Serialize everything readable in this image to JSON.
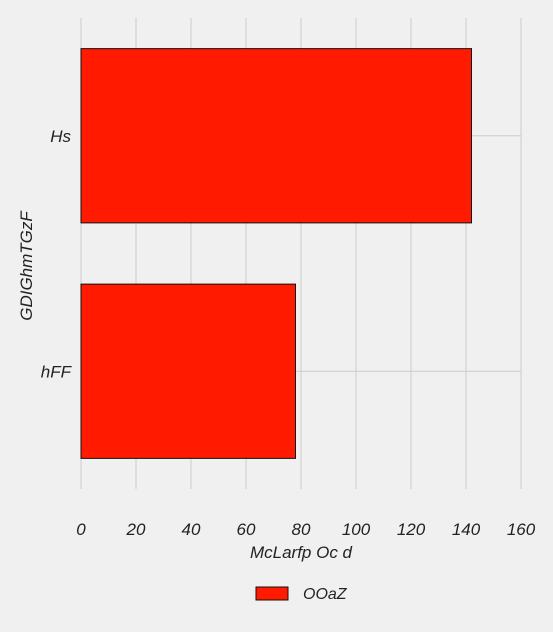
{
  "chart_data": {
    "type": "bar",
    "orientation": "horizontal",
    "categories": [
      "Hs",
      "hFF"
    ],
    "series": [
      {
        "name": "OOaZ",
        "values": [
          142,
          78
        ],
        "color": "#ff1a00"
      }
    ],
    "xlabel": "McLarfp Oc d",
    "ylabel": "GDIGhmTGzF",
    "xlim": [
      0,
      160
    ],
    "xticks": [
      "0",
      "20",
      "40",
      "60",
      "80",
      "100",
      "120",
      "140",
      "160"
    ],
    "grid": true,
    "legend_position": "bottom-center",
    "colors": {
      "background": "#f0f0f0",
      "grid": "#cbcbcb",
      "bar_edge": "#111111"
    }
  }
}
